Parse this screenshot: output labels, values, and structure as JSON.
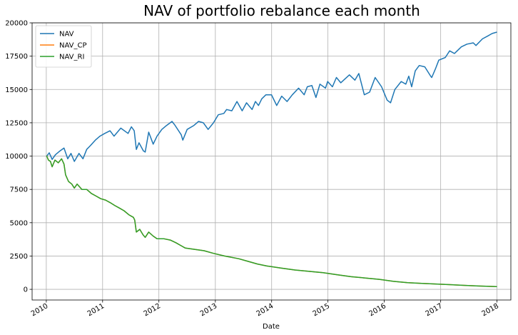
{
  "chart_data": {
    "type": "line",
    "title": "NAV of portfolio rebalance each month",
    "xlabel": "Date",
    "ylabel": "",
    "xlim": [
      "2009-10-01",
      "2018-04-01"
    ],
    "ylim": [
      -800,
      20000
    ],
    "x_ticks": [
      {
        "date": "2010-01-01",
        "label": "2010"
      },
      {
        "date": "2011-01-01",
        "label": "2011"
      },
      {
        "date": "2012-01-01",
        "label": "2012"
      },
      {
        "date": "2013-01-01",
        "label": "2013"
      },
      {
        "date": "2014-01-01",
        "label": "2014"
      },
      {
        "date": "2015-01-01",
        "label": "2015"
      },
      {
        "date": "2016-01-01",
        "label": "2016"
      },
      {
        "date": "2017-01-01",
        "label": "2017"
      },
      {
        "date": "2018-01-01",
        "label": "2018"
      }
    ],
    "y_ticks": [
      0,
      2500,
      5000,
      7500,
      10000,
      12500,
      15000,
      17500,
      20000
    ],
    "y_tick_labels": [
      "0",
      "2500",
      "5000",
      "7500",
      "10000",
      "12500",
      "15000",
      "17500",
      "20000"
    ],
    "grid": true,
    "legend": "top-left",
    "series": [
      {
        "name": "NAV",
        "color": "#1f77b4",
        "points": [
          [
            "2010-01-04",
            10000
          ],
          [
            "2010-01-20",
            10250
          ],
          [
            "2010-02-08",
            9750
          ],
          [
            "2010-03-01",
            10100
          ],
          [
            "2010-04-01",
            10400
          ],
          [
            "2010-04-26",
            10600
          ],
          [
            "2010-05-20",
            9800
          ],
          [
            "2010-06-10",
            10200
          ],
          [
            "2010-07-02",
            9600
          ],
          [
            "2010-08-01",
            10200
          ],
          [
            "2010-08-27",
            9800
          ],
          [
            "2010-09-20",
            10500
          ],
          [
            "2010-10-15",
            10800
          ],
          [
            "2010-11-15",
            11200
          ],
          [
            "2010-12-15",
            11500
          ],
          [
            "2011-01-15",
            11700
          ],
          [
            "2011-02-18",
            11900
          ],
          [
            "2011-03-16",
            11500
          ],
          [
            "2011-04-29",
            12100
          ],
          [
            "2011-06-15",
            11700
          ],
          [
            "2011-07-07",
            12200
          ],
          [
            "2011-07-25",
            11900
          ],
          [
            "2011-08-08",
            10500
          ],
          [
            "2011-08-25",
            11000
          ],
          [
            "2011-09-22",
            10400
          ],
          [
            "2011-10-04",
            10300
          ],
          [
            "2011-10-27",
            11800
          ],
          [
            "2011-11-25",
            10900
          ],
          [
            "2011-12-20",
            11500
          ],
          [
            "2012-01-20",
            12000
          ],
          [
            "2012-02-20",
            12300
          ],
          [
            "2012-03-26",
            12600
          ],
          [
            "2012-04-15",
            12300
          ],
          [
            "2012-05-25",
            11600
          ],
          [
            "2012-06-04",
            11200
          ],
          [
            "2012-07-02",
            12000
          ],
          [
            "2012-08-15",
            12300
          ],
          [
            "2012-09-14",
            12600
          ],
          [
            "2012-10-15",
            12500
          ],
          [
            "2012-11-15",
            12000
          ],
          [
            "2012-12-20",
            12500
          ],
          [
            "2013-01-20",
            13100
          ],
          [
            "2013-02-25",
            13200
          ],
          [
            "2013-03-15",
            13500
          ],
          [
            "2013-04-18",
            13400
          ],
          [
            "2013-05-21",
            14100
          ],
          [
            "2013-06-24",
            13400
          ],
          [
            "2013-07-22",
            14000
          ],
          [
            "2013-08-27",
            13500
          ],
          [
            "2013-09-18",
            14100
          ],
          [
            "2013-10-08",
            13800
          ],
          [
            "2013-10-29",
            14300
          ],
          [
            "2013-11-25",
            14600
          ],
          [
            "2013-12-31",
            14600
          ],
          [
            "2014-02-03",
            13800
          ],
          [
            "2014-03-07",
            14500
          ],
          [
            "2014-04-11",
            14100
          ],
          [
            "2014-05-15",
            14600
          ],
          [
            "2014-06-25",
            15100
          ],
          [
            "2014-07-31",
            14600
          ],
          [
            "2014-08-20",
            15200
          ],
          [
            "2014-09-19",
            15300
          ],
          [
            "2014-10-15",
            14400
          ],
          [
            "2014-11-10",
            15400
          ],
          [
            "2014-12-16",
            15100
          ],
          [
            "2014-12-30",
            15600
          ],
          [
            "2015-01-30",
            15200
          ],
          [
            "2015-02-25",
            15900
          ],
          [
            "2015-03-25",
            15500
          ],
          [
            "2015-05-20",
            16100
          ],
          [
            "2015-06-25",
            15700
          ],
          [
            "2015-07-20",
            16200
          ],
          [
            "2015-08-25",
            14600
          ],
          [
            "2015-09-28",
            14800
          ],
          [
            "2015-11-03",
            15900
          ],
          [
            "2015-12-15",
            15200
          ],
          [
            "2016-01-20",
            14200
          ],
          [
            "2016-02-11",
            14000
          ],
          [
            "2016-03-10",
            15000
          ],
          [
            "2016-04-20",
            15600
          ],
          [
            "2016-05-20",
            15400
          ],
          [
            "2016-06-08",
            16000
          ],
          [
            "2016-06-27",
            15200
          ],
          [
            "2016-07-20",
            16400
          ],
          [
            "2016-08-15",
            16800
          ],
          [
            "2016-09-20",
            16700
          ],
          [
            "2016-10-28",
            16000
          ],
          [
            "2016-11-04",
            15900
          ],
          [
            "2016-11-30",
            16600
          ],
          [
            "2016-12-20",
            17200
          ],
          [
            "2017-01-31",
            17400
          ],
          [
            "2017-02-28",
            17900
          ],
          [
            "2017-03-31",
            17700
          ],
          [
            "2017-05-15",
            18200
          ],
          [
            "2017-06-20",
            18400
          ],
          [
            "2017-07-31",
            18500
          ],
          [
            "2017-08-18",
            18300
          ],
          [
            "2017-09-29",
            18800
          ],
          [
            "2017-10-31",
            19000
          ],
          [
            "2017-12-01",
            19200
          ],
          [
            "2017-12-29",
            19300
          ]
        ]
      },
      {
        "name": "NAV_CP",
        "color": "#ff7f0e",
        "points": [
          [
            "2010-01-04",
            10000
          ],
          [
            "2010-01-15",
            9700
          ],
          [
            "2010-01-28",
            9600
          ],
          [
            "2010-02-08",
            9200
          ],
          [
            "2010-02-26",
            9700
          ],
          [
            "2010-03-20",
            9500
          ],
          [
            "2010-04-10",
            9800
          ],
          [
            "2010-04-26",
            9400
          ],
          [
            "2010-05-06",
            8600
          ],
          [
            "2010-05-25",
            8100
          ],
          [
            "2010-06-15",
            7900
          ],
          [
            "2010-07-02",
            7600
          ],
          [
            "2010-07-20",
            7900
          ],
          [
            "2010-08-20",
            7500
          ],
          [
            "2010-09-20",
            7500
          ],
          [
            "2010-10-20",
            7200
          ],
          [
            "2010-11-20",
            7000
          ],
          [
            "2010-12-20",
            6800
          ],
          [
            "2011-01-20",
            6700
          ],
          [
            "2011-02-20",
            6500
          ],
          [
            "2011-03-20",
            6300
          ],
          [
            "2011-04-20",
            6100
          ],
          [
            "2011-05-20",
            5900
          ],
          [
            "2011-06-20",
            5600
          ],
          [
            "2011-07-20",
            5400
          ],
          [
            "2011-07-28",
            5200
          ],
          [
            "2011-08-08",
            4300
          ],
          [
            "2011-08-30",
            4500
          ],
          [
            "2011-09-20",
            4100
          ],
          [
            "2011-10-04",
            3900
          ],
          [
            "2011-10-27",
            4300
          ],
          [
            "2011-11-25",
            4000
          ],
          [
            "2011-12-20",
            3800
          ],
          [
            "2012-02-01",
            3800
          ],
          [
            "2012-03-15",
            3700
          ],
          [
            "2012-04-20",
            3500
          ],
          [
            "2012-05-20",
            3300
          ],
          [
            "2012-06-20",
            3100
          ],
          [
            "2012-08-20",
            3000
          ],
          [
            "2012-10-20",
            2900
          ],
          [
            "2012-12-20",
            2700
          ],
          [
            "2013-03-01",
            2500
          ],
          [
            "2013-06-01",
            2300
          ],
          [
            "2013-08-01",
            2100
          ],
          [
            "2013-10-01",
            1900
          ],
          [
            "2013-12-01",
            1750
          ],
          [
            "2014-03-01",
            1600
          ],
          [
            "2014-06-01",
            1450
          ],
          [
            "2014-09-01",
            1350
          ],
          [
            "2014-12-01",
            1250
          ],
          [
            "2015-03-01",
            1100
          ],
          [
            "2015-06-01",
            950
          ],
          [
            "2015-09-01",
            850
          ],
          [
            "2015-12-01",
            750
          ],
          [
            "2016-03-01",
            600
          ],
          [
            "2016-06-01",
            500
          ],
          [
            "2016-09-01",
            450
          ],
          [
            "2016-12-01",
            400
          ],
          [
            "2017-03-01",
            350
          ],
          [
            "2017-06-01",
            300
          ],
          [
            "2017-09-01",
            250
          ],
          [
            "2017-12-29",
            200
          ]
        ]
      },
      {
        "name": "NAV_RI",
        "color": "#2ca02c",
        "points": [
          [
            "2010-01-04",
            10000
          ],
          [
            "2010-01-15",
            9700
          ],
          [
            "2010-01-28",
            9600
          ],
          [
            "2010-02-08",
            9200
          ],
          [
            "2010-02-26",
            9700
          ],
          [
            "2010-03-20",
            9500
          ],
          [
            "2010-04-10",
            9800
          ],
          [
            "2010-04-26",
            9400
          ],
          [
            "2010-05-06",
            8600
          ],
          [
            "2010-05-25",
            8100
          ],
          [
            "2010-06-15",
            7900
          ],
          [
            "2010-07-02",
            7600
          ],
          [
            "2010-07-20",
            7900
          ],
          [
            "2010-08-20",
            7500
          ],
          [
            "2010-09-20",
            7500
          ],
          [
            "2010-10-20",
            7200
          ],
          [
            "2010-11-20",
            7000
          ],
          [
            "2010-12-20",
            6800
          ],
          [
            "2011-01-20",
            6700
          ],
          [
            "2011-02-20",
            6500
          ],
          [
            "2011-03-20",
            6300
          ],
          [
            "2011-04-20",
            6100
          ],
          [
            "2011-05-20",
            5900
          ],
          [
            "2011-06-20",
            5600
          ],
          [
            "2011-07-20",
            5400
          ],
          [
            "2011-07-28",
            5200
          ],
          [
            "2011-08-08",
            4300
          ],
          [
            "2011-08-30",
            4500
          ],
          [
            "2011-09-20",
            4100
          ],
          [
            "2011-10-04",
            3900
          ],
          [
            "2011-10-27",
            4300
          ],
          [
            "2011-11-25",
            4000
          ],
          [
            "2011-12-20",
            3800
          ],
          [
            "2012-02-01",
            3800
          ],
          [
            "2012-03-15",
            3700
          ],
          [
            "2012-04-20",
            3500
          ],
          [
            "2012-05-20",
            3300
          ],
          [
            "2012-06-20",
            3100
          ],
          [
            "2012-08-20",
            3000
          ],
          [
            "2012-10-20",
            2900
          ],
          [
            "2012-12-20",
            2700
          ],
          [
            "2013-03-01",
            2500
          ],
          [
            "2013-06-01",
            2300
          ],
          [
            "2013-08-01",
            2100
          ],
          [
            "2013-10-01",
            1900
          ],
          [
            "2013-12-01",
            1750
          ],
          [
            "2014-03-01",
            1600
          ],
          [
            "2014-06-01",
            1450
          ],
          [
            "2014-09-01",
            1350
          ],
          [
            "2014-12-01",
            1250
          ],
          [
            "2015-03-01",
            1100
          ],
          [
            "2015-06-01",
            950
          ],
          [
            "2015-09-01",
            850
          ],
          [
            "2015-12-01",
            750
          ],
          [
            "2016-03-01",
            600
          ],
          [
            "2016-06-01",
            500
          ],
          [
            "2016-09-01",
            450
          ],
          [
            "2016-12-01",
            400
          ],
          [
            "2017-03-01",
            350
          ],
          [
            "2017-06-01",
            300
          ],
          [
            "2017-09-01",
            250
          ],
          [
            "2017-12-29",
            200
          ]
        ]
      }
    ]
  }
}
